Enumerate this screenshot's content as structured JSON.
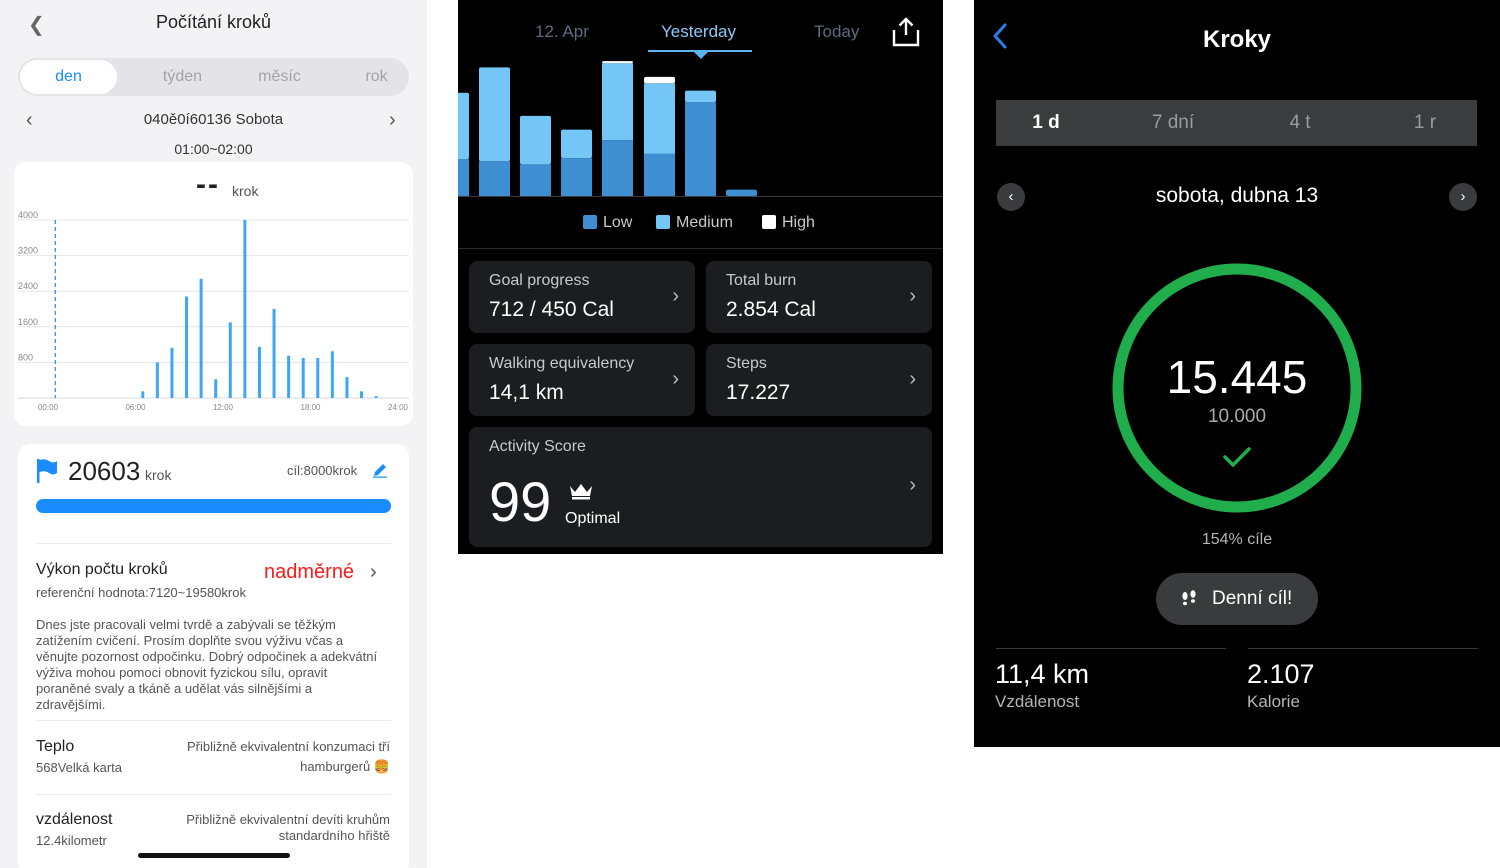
{
  "panel1": {
    "title": "Počítání kroků",
    "tabs": [
      "den",
      "týden",
      "měsíc",
      "rok"
    ],
    "active_tab": 0,
    "date": "040ě0í60136 Sobota",
    "time_range": "01:00~02:00",
    "current_value": "--",
    "current_unit": "krok",
    "chart_data": {
      "type": "bar",
      "x_ticks": [
        "00:00",
        "06:00",
        "12:00",
        "18:00",
        "24:00"
      ],
      "y_ticks": [
        "800",
        "1600",
        "2400",
        "3200",
        "4000"
      ],
      "ylim": [
        0,
        4000
      ],
      "x": [
        1,
        7,
        8,
        9,
        10,
        11,
        12,
        13,
        14,
        15,
        16,
        17,
        18,
        19,
        20,
        21,
        22,
        23
      ],
      "values": [
        0,
        150,
        800,
        1130,
        2280,
        2680,
        420,
        1700,
        4000,
        1150,
        2000,
        950,
        900,
        900,
        1050,
        470,
        150,
        40
      ],
      "highlight_x": 1
    },
    "steps_total": "20603",
    "steps_unit": "krok",
    "goal_label": "cíl:8000krok",
    "goal_progress_ratio": 1.0,
    "performance_title": "Výkon počtu kroků",
    "performance_value": "nadměrné",
    "performance_reference": "referenční hodnota:7120~19580krok",
    "performance_description": "Dnes jste pracovali velmi tvrdě a zabývali se těžkým zatížením cvičení. Prosím doplňte svou výživu včas a věnujte pozornost odpočinku. Dobrý odpočinek a adekvátní výživa mohou pomoci obnovit fyzickou sílu, opravit poraněné svaly a tkáně a udělat vás silnějšími a zdravějšími.",
    "heat_title": "Teplo",
    "heat_value": "568Velká karta",
    "heat_note": "Přibližně ekvivalentní konzumaci tří hamburgerů 🍔",
    "distance_title": "vzdálenost",
    "distance_value": "12.4kilometr",
    "distance_note": "Přibližně ekvivalentní devíti kruhům standardního hřiště",
    "colors": {
      "accent": "#1a8cff",
      "warning": "#ff1a1a"
    }
  },
  "panel2": {
    "tabs": [
      "12. Apr",
      "Yesterday",
      "Today"
    ],
    "active_tab": 1,
    "chart_data": {
      "type": "bar",
      "stacked": true,
      "series": [
        {
          "name": "Low",
          "color": "#3d8fd1",
          "values": [
            35,
            33,
            30,
            36,
            53,
            40,
            89,
            6
          ]
        },
        {
          "name": "Medium",
          "color": "#74c6f7",
          "values": [
            63,
            89,
            46,
            27,
            73,
            67,
            11,
            0
          ]
        },
        {
          "name": "High",
          "color": "#ffffff",
          "values": [
            0,
            0,
            0,
            0,
            2,
            6,
            0,
            0
          ]
        }
      ],
      "ylim": [
        0,
        130
      ]
    },
    "legend": [
      "Low",
      "Medium",
      "High"
    ],
    "tiles": {
      "goal_progress": {
        "label": "Goal progress",
        "value": "712 / 450 Cal"
      },
      "total_burn": {
        "label": "Total burn",
        "value": "2.854 Cal"
      },
      "walking": {
        "label": "Walking equivalency",
        "value": "14,1 km"
      },
      "steps": {
        "label": "Steps",
        "value": "17.227"
      }
    },
    "activity_score": {
      "label": "Activity Score",
      "value": "99",
      "status": "Optimal"
    }
  },
  "panel3": {
    "title": "Kroky",
    "tabs": [
      "1 d",
      "7 dní",
      "4 t",
      "1 r"
    ],
    "active_tab": 0,
    "date": "sobota, dubna 13",
    "steps": "15.445",
    "goal": "10.000",
    "goal_ratio": 1.0,
    "percent_label": "154% cíle",
    "daily_goal_button": "Denní cíl!",
    "distance_value": "11,4 km",
    "distance_label": "Vzdálenost",
    "calories_value": "2.107",
    "calories_label": "Kalorie",
    "colors": {
      "ring": "#1fae4b",
      "back": "#2a7ee8"
    }
  }
}
